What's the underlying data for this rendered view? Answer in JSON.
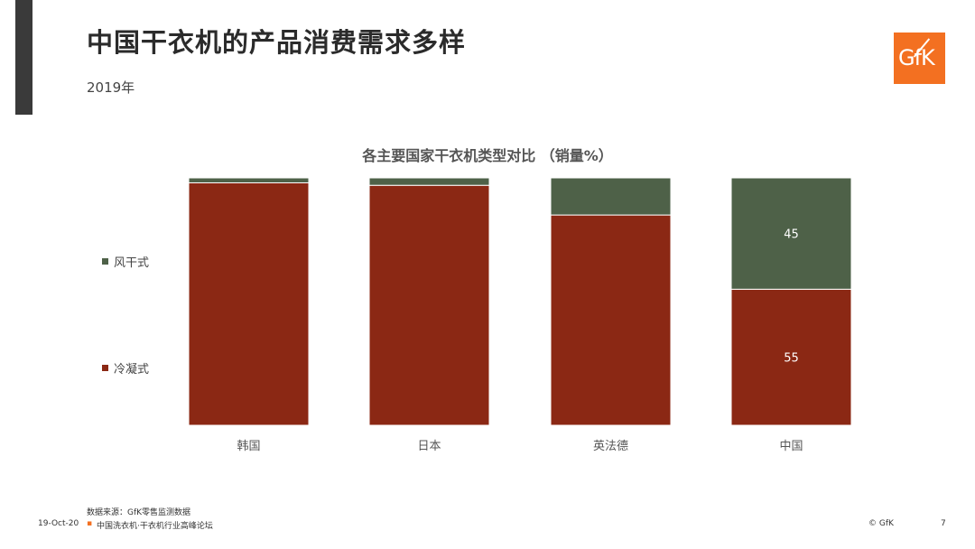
{
  "header": {
    "title": "中国干衣机的产品消费需求多样",
    "subtitle": "2019年",
    "logo_text": "GfK"
  },
  "chart_data": {
    "type": "bar",
    "stacked": true,
    "title": "各主要国家干衣机类型对比 （销量%）",
    "categories": [
      "韩国",
      "日本",
      "英法德",
      "中国"
    ],
    "series": [
      {
        "name": "冷凝式",
        "values": [
          98,
          97,
          85,
          55
        ],
        "color": "#8b2814"
      },
      {
        "name": "风干式",
        "values": [
          2,
          3,
          15,
          45
        ],
        "color": "#4e6148"
      }
    ],
    "data_labels": [
      {
        "category": "中国",
        "series": "风干式",
        "text": "45"
      },
      {
        "category": "中国",
        "series": "冷凝式",
        "text": "55"
      }
    ],
    "ylim": [
      0,
      100
    ],
    "legend_position": "left"
  },
  "footer": {
    "source": "数据来源：GfK零售监测数据",
    "date": "19-Oct-20",
    "bullet": "▪",
    "event": "中国洗衣机·干衣机行业高峰论坛",
    "copyright": "© GfK",
    "page": "7"
  }
}
